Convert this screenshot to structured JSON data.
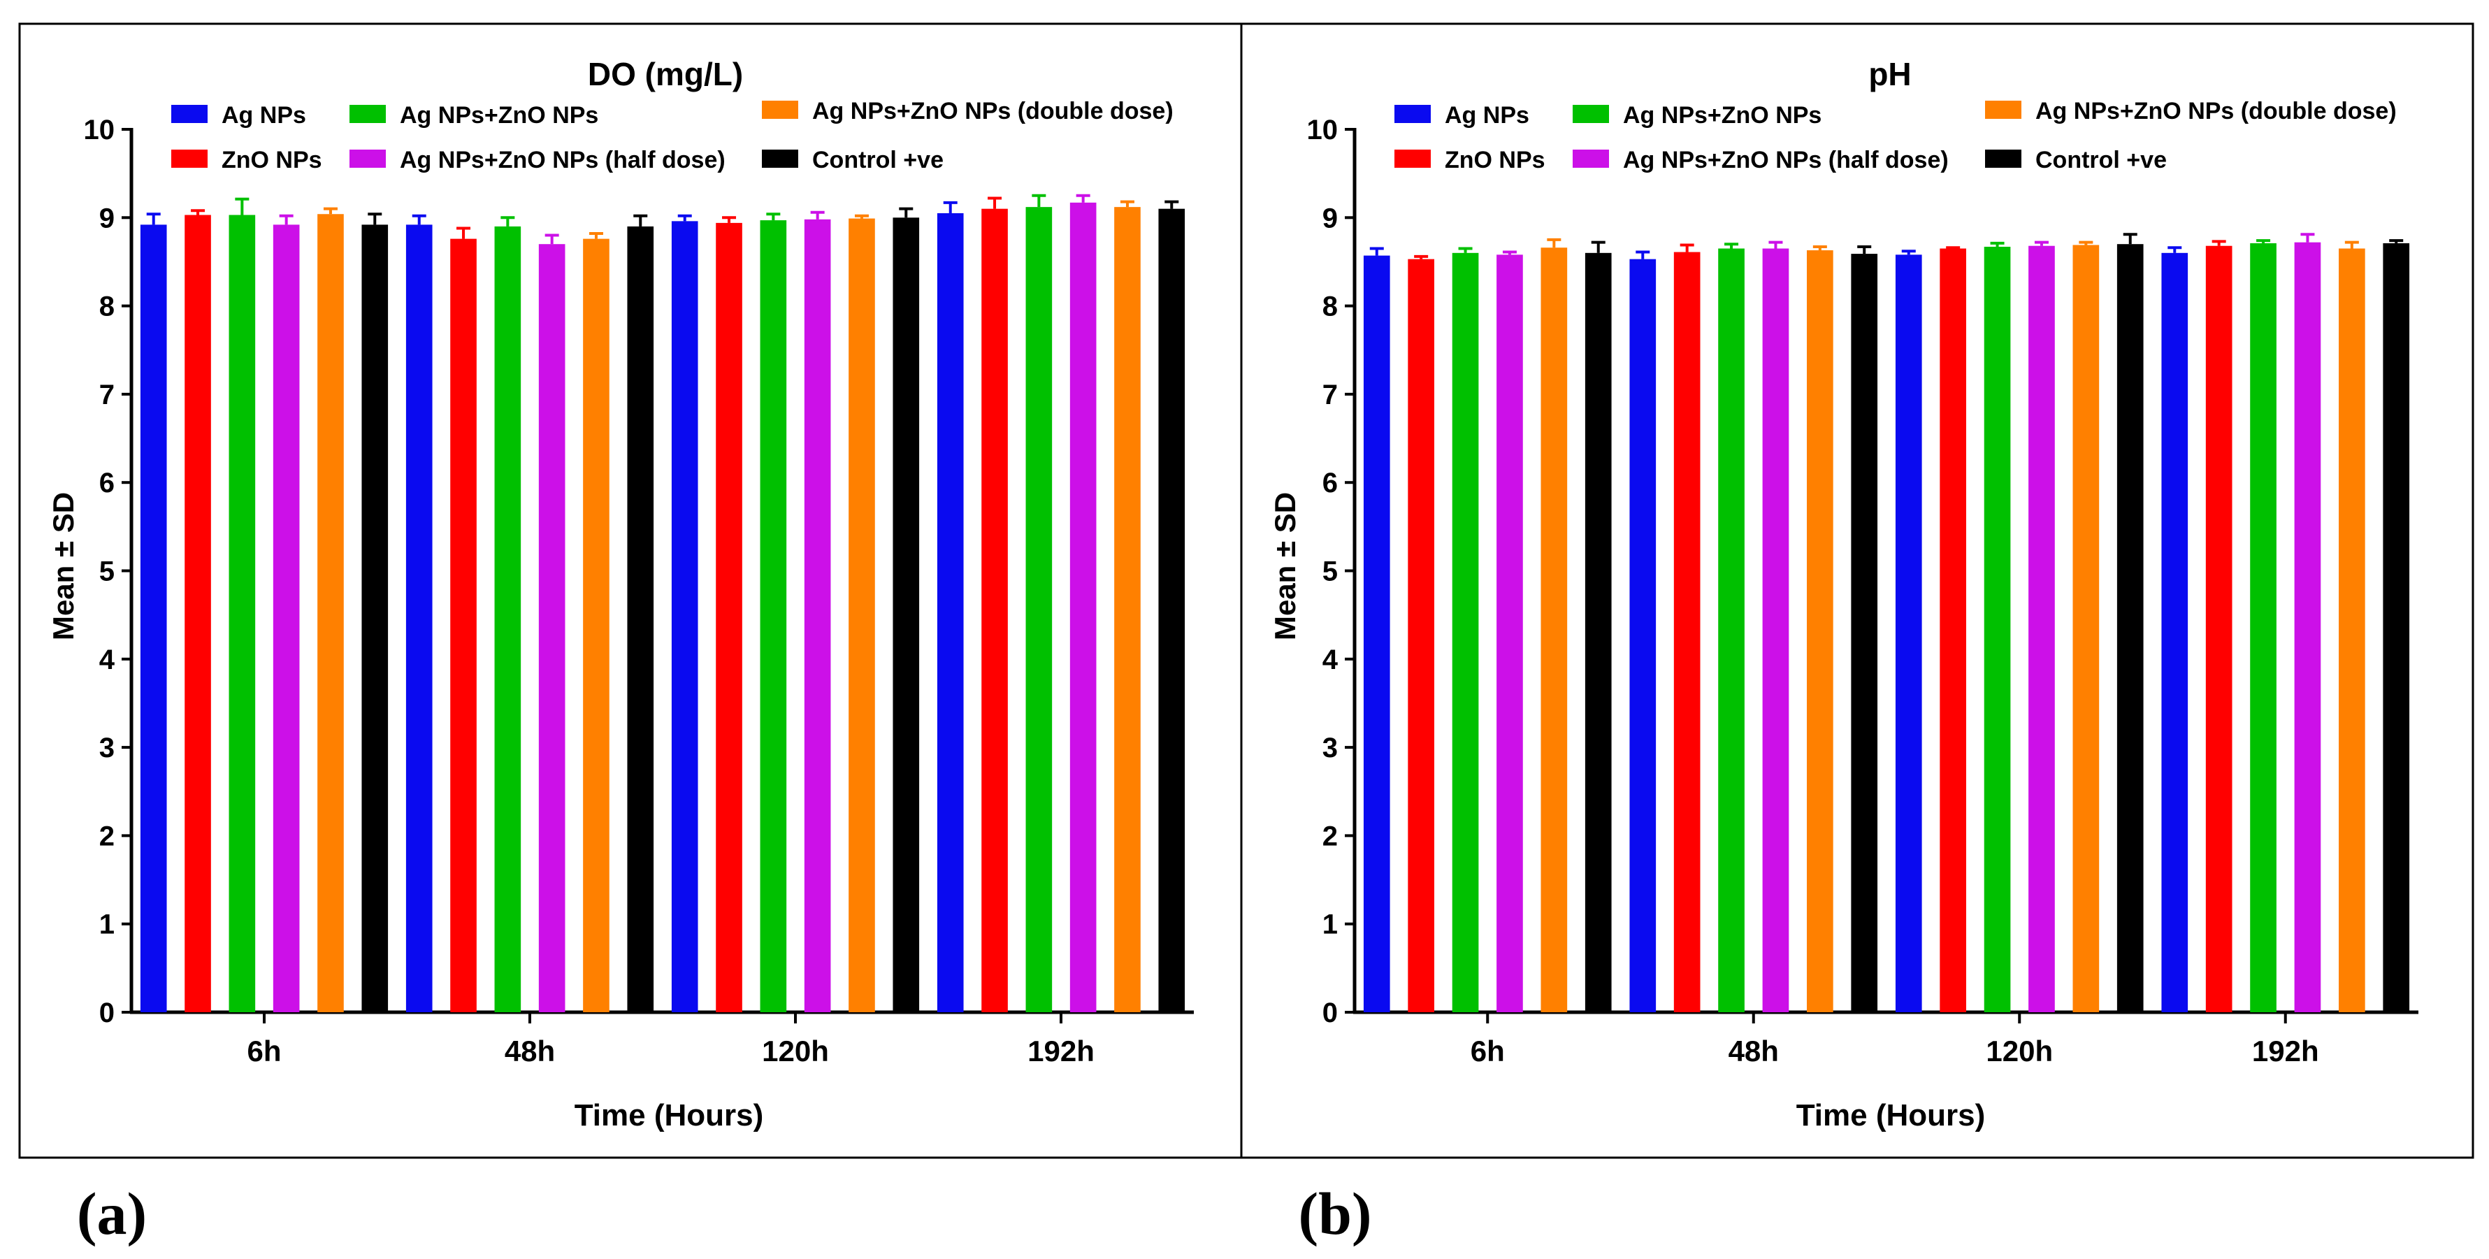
{
  "colors": {
    "Ag NPs": "#0a0af0",
    "ZnO NPs": "#ff0000",
    "Ag NPs+ZnO NPs": "#00c000",
    "Ag NPs+ZnO NPs (half dose)": "#cc10e8",
    "Ag NPs+ZnO NPs (double dose)": "#ff8000",
    "Control +ve": "#000000"
  },
  "chart_data": [
    {
      "type": "bar",
      "panel_label": "(a)",
      "title": "DO (mg/L)",
      "xlabel": "Time (Hours)",
      "ylabel": "Mean ± SD",
      "ylim": [
        0,
        10
      ],
      "yticks": [
        "0",
        "1",
        "2",
        "3",
        "4",
        "5",
        "6",
        "7",
        "8",
        "9",
        "10"
      ],
      "categories": [
        "6h",
        "48h",
        "120h",
        "192h"
      ],
      "legend_position": "top",
      "series": [
        {
          "name": "Ag NPs",
          "values": [
            8.92,
            8.92,
            8.96,
            9.05
          ],
          "errors": [
            0.12,
            0.1,
            0.06,
            0.12
          ]
        },
        {
          "name": "ZnO NPs",
          "values": [
            9.03,
            8.76,
            8.94,
            9.1
          ],
          "errors": [
            0.05,
            0.12,
            0.06,
            0.12
          ]
        },
        {
          "name": "Ag NPs+ZnO NPs",
          "values": [
            9.03,
            8.9,
            8.97,
            9.12
          ],
          "errors": [
            0.18,
            0.1,
            0.07,
            0.13
          ]
        },
        {
          "name": "Ag NPs+ZnO NPs (half dose)",
          "values": [
            8.92,
            8.7,
            8.98,
            9.17
          ],
          "errors": [
            0.1,
            0.1,
            0.08,
            0.08
          ]
        },
        {
          "name": "Ag NPs+ZnO NPs (double dose)",
          "values": [
            9.04,
            8.76,
            8.99,
            9.12
          ],
          "errors": [
            0.06,
            0.06,
            0.03,
            0.06
          ]
        },
        {
          "name": "Control +ve",
          "values": [
            8.92,
            8.9,
            9.0,
            9.1
          ],
          "errors": [
            0.12,
            0.12,
            0.1,
            0.08
          ]
        }
      ]
    },
    {
      "type": "bar",
      "panel_label": "(b)",
      "title": "pH",
      "xlabel": "Time (Hours)",
      "ylabel": "Mean ± SD",
      "ylim": [
        0,
        10
      ],
      "yticks": [
        "0",
        "1",
        "2",
        "3",
        "4",
        "5",
        "6",
        "7",
        "8",
        "9",
        "10"
      ],
      "categories": [
        "6h",
        "48h",
        "120h",
        "192h"
      ],
      "legend_position": "top",
      "series": [
        {
          "name": "Ag NPs",
          "values": [
            8.57,
            8.53,
            8.58,
            8.6
          ],
          "errors": [
            0.08,
            0.08,
            0.04,
            0.06
          ]
        },
        {
          "name": "ZnO NPs",
          "values": [
            8.53,
            8.61,
            8.65,
            8.68
          ],
          "errors": [
            0.03,
            0.08,
            0.01,
            0.05
          ]
        },
        {
          "name": "Ag NPs+ZnO NPs",
          "values": [
            8.6,
            8.65,
            8.67,
            8.71
          ],
          "errors": [
            0.05,
            0.05,
            0.04,
            0.03
          ]
        },
        {
          "name": "Ag NPs+ZnO NPs (half dose)",
          "values": [
            8.58,
            8.65,
            8.68,
            8.72
          ],
          "errors": [
            0.03,
            0.07,
            0.04,
            0.09
          ]
        },
        {
          "name": "Ag NPs+ZnO NPs (double dose)",
          "values": [
            8.66,
            8.63,
            8.69,
            8.65
          ],
          "errors": [
            0.09,
            0.04,
            0.03,
            0.07
          ]
        },
        {
          "name": "Control +ve",
          "values": [
            8.6,
            8.59,
            8.7,
            8.71
          ],
          "errors": [
            0.12,
            0.08,
            0.11,
            0.03
          ]
        }
      ]
    }
  ]
}
